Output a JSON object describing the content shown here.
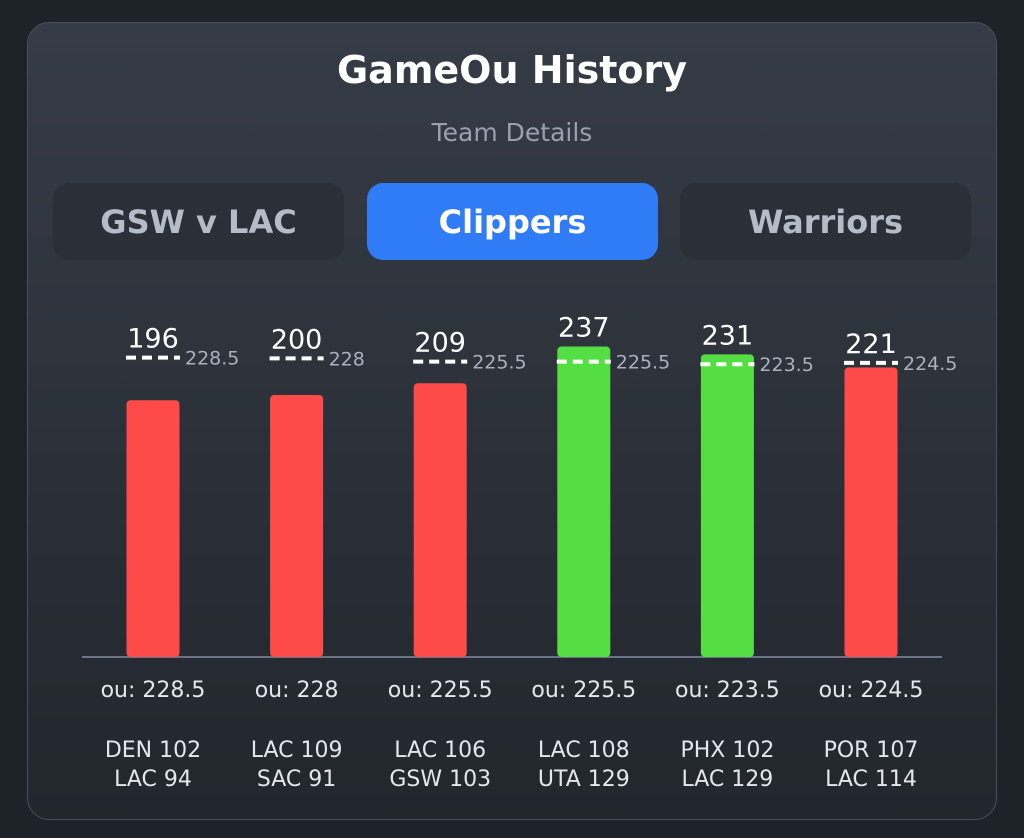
{
  "header": {
    "title": "GameOu History",
    "subtitle": "Team Details"
  },
  "tabs": {
    "items": [
      "GSW v LAC",
      "Clippers",
      "Warriors"
    ],
    "active": 1
  },
  "chart_data": {
    "type": "bar",
    "categories": [
      [
        "DEN 102",
        "LAC 94"
      ],
      [
        "LAC 109",
        "SAC 91"
      ],
      [
        "LAC 106",
        "GSW 103"
      ],
      [
        "LAC 108",
        "UTA 129"
      ],
      [
        "PHX 102",
        "LAC 129"
      ],
      [
        "POR 107",
        "LAC 114"
      ]
    ],
    "values": [
      196,
      200,
      209,
      237,
      231,
      221
    ],
    "ou_lines": [
      228.5,
      228,
      225.5,
      225.5,
      223.5,
      224.5
    ],
    "ou_labels": [
      "ou: 228.5",
      "ou: 228",
      "ou: 225.5",
      "ou: 225.5",
      "ou: 223.5",
      "ou: 224.5"
    ],
    "over_color": "#55dd44",
    "under_color": "#ff4a4a",
    "ylim": [
      0,
      300
    ]
  }
}
